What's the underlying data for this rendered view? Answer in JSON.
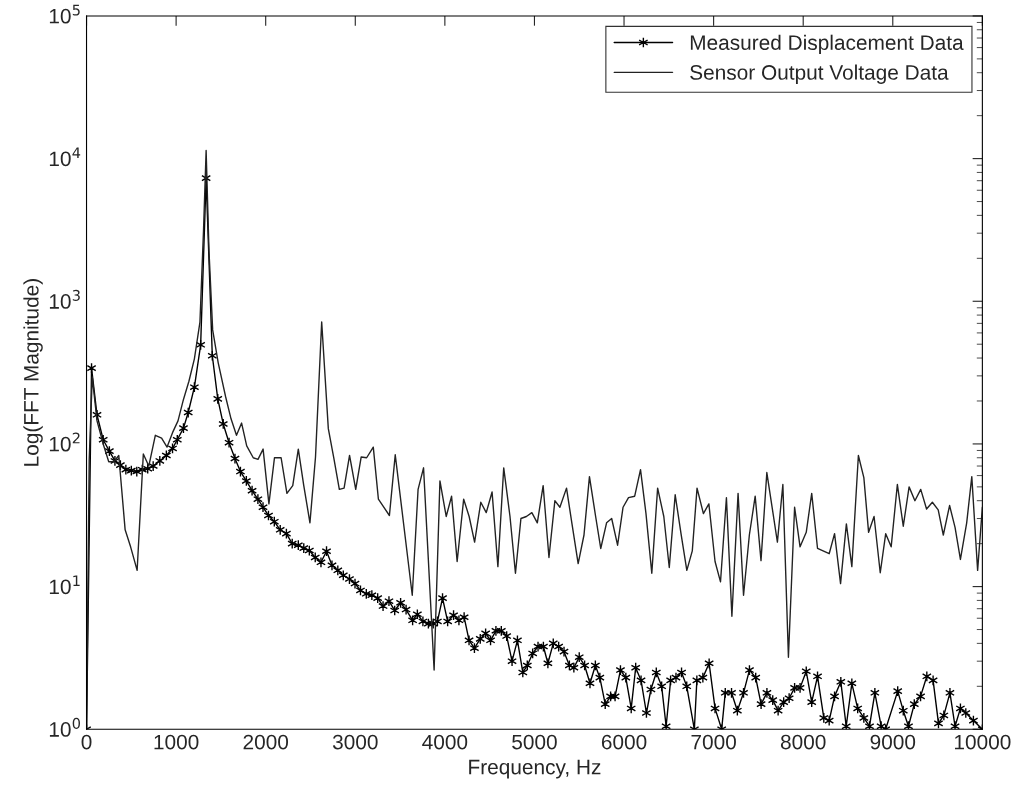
{
  "chart_data": {
    "type": "line",
    "xlabel": "Frequency, Hz",
    "ylabel": "Log(FFT Magnitude)",
    "log": "y",
    "grid": false,
    "legend": "top right",
    "xlim": [
      0,
      10000
    ],
    "xticks": [
      0,
      1000,
      2000,
      3000,
      4000,
      5000,
      6000,
      7000,
      8000,
      9000,
      10000
    ],
    "ylim": [
      1,
      100000
    ],
    "yticks": [
      {
        "value": 1,
        "label": "10$^{0}$"
      },
      {
        "value": 10,
        "label": "10$^{1}$"
      },
      {
        "value": 100,
        "label": "10$^{2}$"
      },
      {
        "value": 1000,
        "label": "10$^{3}$"
      },
      {
        "value": 10000,
        "label": "10$^{4}$"
      },
      {
        "value": 100000,
        "label": "10$^{5}$"
      }
    ],
    "series": [
      {
        "name": "Measured Displacement Data",
        "color": "#000000",
        "marker": "cross",
        "line_style": "solid",
        "x": [
          0,
          56,
          117,
          186,
          255,
          317,
          378,
          439,
          500,
          561,
          622,
          683,
          744,
          818,
          891,
          960,
          1013,
          1082,
          1135,
          1204,
          1274,
          1335,
          1404,
          1465,
          1526,
          1591,
          1657,
          1718,
          1784,
          1848,
          1913,
          1970,
          2031,
          2096,
          2162,
          2231,
          2296,
          2364,
          2425,
          2487,
          2553,
          2617,
          2679,
          2740,
          2805,
          2866,
          2935,
          2997,
          3058,
          3123,
          3185,
          3250,
          3310,
          3376,
          3440,
          3506,
          3567,
          3640,
          3693,
          3755,
          3816,
          3870,
          3917,
          3974,
          4031,
          4097,
          4157,
          4215,
          4270,
          4330,
          4395,
          4455,
          4510,
          4570,
          4630,
          4690,
          4750,
          4810,
          4870,
          4920,
          4980,
          5040,
          5100,
          5150,
          5210,
          5270,
          5330,
          5390,
          5440,
          5500,
          5560,
          5620,
          5680,
          5730,
          5790,
          5850,
          5900,
          5960,
          6020,
          6080,
          6130,
          6190,
          6250,
          6300,
          6360,
          6420,
          6470,
          6520,
          6580,
          6642,
          6700,
          6785,
          6813,
          6880,
          6950,
          7016,
          7090,
          7130,
          7200,
          7265,
          7334,
          7400,
          7470,
          7530,
          7595,
          7660,
          7720,
          7782,
          7843,
          7904,
          7965,
          8034,
          8095,
          8160,
          8230,
          8290,
          8350,
          8420,
          8480,
          8543,
          8608,
          8677,
          8740,
          8800,
          8870,
          8920,
          9055,
          9117,
          9175,
          9240,
          9310,
          9380,
          9450,
          9510,
          9570,
          9638,
          9695,
          9755,
          9815,
          9900,
          10000
        ],
        "values": [
          1.0,
          340,
          160,
          107,
          89,
          76,
          71,
          66,
          65,
          64,
          66,
          67,
          70,
          76,
          83,
          93,
          107,
          129,
          166,
          250,
          495,
          7300,
          415,
          207,
          138,
          102,
          79,
          64,
          55,
          47,
          41,
          36,
          31.5,
          28.5,
          25,
          23.5,
          20,
          19.5,
          18.6,
          17.9,
          16,
          14.8,
          17.7,
          14.1,
          13,
          12,
          11.3,
          10.5,
          9.4,
          8.9,
          8.7,
          8.3,
          7.3,
          7.9,
          6.8,
          7.7,
          6.9,
          5.8,
          6.4,
          5.7,
          5.5,
          5.5,
          5.7,
          8.3,
          5.7,
          6.3,
          5.8,
          6.1,
          4.2,
          3.7,
          4.3,
          4.7,
          4.2,
          4.9,
          4.9,
          4.5,
          3.0,
          4.2,
          2.5,
          2.8,
          3.4,
          3.8,
          3.8,
          2.9,
          4.0,
          3.8,
          3.5,
          2.8,
          2.7,
          3.2,
          2.8,
          2.1,
          2.8,
          2.3,
          1.5,
          1.7,
          1.7,
          2.6,
          2.3,
          1.4,
          2.7,
          2.2,
          1.3,
          1.9,
          2.5,
          2.0,
          1.05,
          2.2,
          2.3,
          2.5,
          2.0,
          1.0,
          2.2,
          2.3,
          2.9,
          1.4,
          1.0,
          1.8,
          1.8,
          1.35,
          1.8,
          2.6,
          2.3,
          1.5,
          1.8,
          1.6,
          1.35,
          1.55,
          1.65,
          1.95,
          1.95,
          2.55,
          1.55,
          2.35,
          1.2,
          1.15,
          1.7,
          2.15,
          1.05,
          2.1,
          1.4,
          1.2,
          1.05,
          1.8,
          1.05,
          1.0,
          1.85,
          1.35,
          1.05,
          1.5,
          1.7,
          2.35,
          2.2,
          1.1,
          1.25,
          1.8,
          1.05,
          1.4,
          1.3,
          1.15,
          1.0
        ]
      },
      {
        "name": "Sensor Output Voltage Data",
        "color": "#222222",
        "marker": "none",
        "line_style": "solid",
        "x": [
          0,
          30,
          64,
          117,
          186,
          248,
          305,
          360,
          431,
          492,
          565,
          634,
          695,
          768,
          838,
          899,
          960,
          1021,
          1082,
          1143,
          1204,
          1266,
          1306,
          1335,
          1367,
          1408,
          1470,
          1552,
          1613,
          1674,
          1731,
          1788,
          1861,
          1914,
          1971,
          2036,
          2098,
          2172,
          2237,
          2302,
          2364,
          2425,
          2494,
          2556,
          2625,
          2699,
          2760,
          2822,
          2875,
          2936,
          3005,
          3066,
          3127,
          3201,
          3258,
          3381,
          3446,
          3636,
          3701,
          3762,
          3880,
          3945,
          4015,
          4075,
          4137,
          4210,
          4271,
          4332,
          4401,
          4462,
          4527,
          4592,
          4657,
          4727,
          4788,
          4849,
          4910,
          4971,
          5032,
          5097,
          5162,
          5228,
          5284,
          5358,
          5419,
          5488,
          5553,
          5614,
          5683,
          5740,
          5805,
          5862,
          5928,
          5989,
          6050,
          6119,
          6184,
          6245,
          6310,
          6375,
          6444,
          6505,
          6571,
          6636,
          6701,
          6762,
          6815,
          6886,
          6947,
          7016,
          7077,
          7143,
          7204,
          7273,
          7334,
          7399,
          7464,
          7529,
          7594,
          7712,
          7773,
          7835,
          7904,
          7965,
          8034,
          8095,
          8160,
          8290,
          8350,
          8417,
          8482,
          8543,
          8616,
          8677,
          8730,
          8791,
          8860,
          8921,
          8982,
          9051,
          9117,
          9182,
          9247,
          9312,
          9377,
          9442,
          9507,
          9564,
          9634,
          9695,
          9755,
          9825,
          9882,
          9947,
          10000
        ],
        "values": [
          1.0,
          78,
          295,
          145,
          100,
          75,
          75,
          83,
          25,
          19,
          13,
          85,
          70,
          115,
          110,
          95,
          120,
          145,
          205,
          275,
          395,
          715,
          3150,
          11400,
          2250,
          630,
          370,
          215,
          150,
          115,
          140,
          97,
          80,
          78,
          92,
          38,
          80,
          80,
          45,
          51,
          92,
          51,
          28,
          81,
          715,
          128,
          80,
          48,
          49,
          83,
          48,
          81,
          80,
          95,
          41,
          31.5,
          84,
          8.7,
          48,
          68,
          2.6,
          55,
          31,
          43,
          15,
          41,
          31,
          20.5,
          39,
          33,
          46,
          13.8,
          68,
          31,
          12.4,
          30,
          31,
          33,
          28,
          51,
          16,
          40,
          36,
          49,
          27.5,
          14.5,
          23,
          59,
          31,
          18.5,
          28,
          30,
          19.5,
          36,
          42,
          43,
          66,
          32.5,
          12.4,
          49,
          31,
          13.6,
          44,
          23.5,
          13,
          17.8,
          49,
          32.5,
          38,
          15,
          10.8,
          42,
          6.2,
          45,
          8.7,
          23,
          43,
          15.2,
          63,
          20.5,
          52,
          3.2,
          36,
          19,
          24,
          45,
          18.5,
          17,
          23.5,
          10.5,
          27.5,
          13.8,
          83,
          58,
          24,
          31,
          12.5,
          23.5,
          19,
          52,
          26.5,
          50,
          40,
          48,
          35,
          39,
          34.5,
          23,
          37,
          26,
          15.5,
          28,
          59,
          13,
          36
        ]
      }
    ]
  }
}
